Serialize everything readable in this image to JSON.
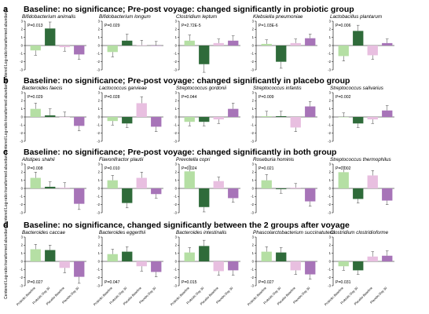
{
  "colors": {
    "Probiotic Baseline": "#b5dfa4",
    "Probiotic Day 30": "#2f6b3a",
    "Placebo Baseline": "#e8bfe0",
    "Placebo Day 30": "#a774b8"
  },
  "group_labels": [
    "Probiotic Baseline",
    "Probiotic Day 30",
    "Placebo Baseline",
    "Placebo Day 30"
  ],
  "chart_data": [
    {
      "panel": "a",
      "title": "Baseline: no significance; Pre-post voyage: changed significantly in probiotic group",
      "ylabel": "Centered Log-ratio transformed abundance",
      "ylim": [
        -3,
        3
      ],
      "yticks": [
        "3",
        "2",
        "1",
        "0",
        "-1",
        "-2",
        "-3"
      ],
      "charts": [
        {
          "type": "bar",
          "title": "Bifidobacterium animalis",
          "pvalue": "P=0.013",
          "values": [
            -0.6,
            2.1,
            -0.2,
            -1.1
          ],
          "errors": [
            0.6,
            0.8,
            0.5,
            0.6
          ]
        },
        {
          "type": "bar",
          "title": "Bifidobacterium longum",
          "pvalue": "P=0.029",
          "values": [
            -0.8,
            0.6,
            0.05,
            0.0
          ],
          "errors": [
            0.6,
            0.8,
            0.6,
            0.5
          ]
        },
        {
          "type": "bar",
          "title": "Clostridium leptum",
          "pvalue": "P=2.72E-5",
          "values": [
            0.6,
            -2.3,
            0.3,
            0.6
          ],
          "errors": [
            0.7,
            1.0,
            0.5,
            0.6
          ]
        },
        {
          "type": "bar",
          "title": "Klebsiella pneumoniae",
          "pvalue": "P=1.03E-6",
          "values": [
            0.2,
            -2.0,
            0.3,
            0.9
          ],
          "errors": [
            0.5,
            0.8,
            0.5,
            0.5
          ]
        },
        {
          "type": "bar",
          "title": "Lactobacillus plantarum",
          "pvalue": "P=0.006",
          "values": [
            -1.3,
            1.8,
            -1.2,
            0.3
          ],
          "errors": [
            0.6,
            0.7,
            0.5,
            0.5
          ]
        }
      ]
    },
    {
      "panel": "b",
      "title": "Baseline: no significance; Pre-post voyage: changed significantly in placebo group",
      "ylabel": "Centered Log-ratio transformed abundance",
      "ylim": [
        -3,
        3
      ],
      "yticks": [
        "3",
        "2",
        "1",
        "0",
        "-1",
        "-2",
        "-3"
      ],
      "charts": [
        {
          "type": "bar",
          "title": "Bacteroides faecis",
          "pvalue": "P=0.029",
          "values": [
            1.0,
            0.2,
            0.0,
            -1.1
          ],
          "errors": [
            0.7,
            0.8,
            0.6,
            0.6
          ]
        },
        {
          "type": "bar",
          "title": "Lactococcus garvieae",
          "pvalue": "P=0.028",
          "values": [
            -0.5,
            -0.8,
            1.7,
            -1.2
          ],
          "errors": [
            0.5,
            0.5,
            0.8,
            0.6
          ]
        },
        {
          "type": "bar",
          "title": "Streptococcus gordonii",
          "pvalue": "P=0.044",
          "values": [
            -0.6,
            -0.6,
            -0.3,
            1.0
          ],
          "errors": [
            0.5,
            0.5,
            0.5,
            0.7
          ]
        },
        {
          "type": "bar",
          "title": "Streptococcus infantis",
          "pvalue": "P=0.009",
          "values": [
            0.1,
            0.1,
            -1.3,
            1.3
          ],
          "errors": [
            0.6,
            0.6,
            0.5,
            0.6
          ]
        },
        {
          "type": "bar",
          "title": "Streptococcus salivarius",
          "pvalue": "P=0.002",
          "values": [
            0.0,
            -0.8,
            -0.3,
            0.8
          ],
          "errors": [
            0.5,
            0.5,
            0.5,
            0.6
          ]
        }
      ]
    },
    {
      "panel": "c",
      "title": "Baseline: no significance; Pre-post voyage: changed significantly in both group",
      "ylabel": "Centered Log-ratio transformed abundance",
      "ylim": [
        -3,
        3
      ],
      "yticks": [
        "3",
        "2",
        "1",
        "0",
        "-1",
        "-2",
        "-3"
      ],
      "charts": [
        {
          "type": "bar",
          "title": "Alistipes shahii",
          "pvalue": "P=0.008",
          "values": [
            1.3,
            0.2,
            0.1,
            -1.9
          ],
          "errors": [
            0.7,
            0.6,
            0.6,
            0.7
          ]
        },
        {
          "type": "bar",
          "title": "Flavonifractor plautii",
          "pvalue": "P=0.010",
          "values": [
            1.0,
            -1.8,
            1.3,
            -0.7
          ],
          "errors": [
            0.6,
            0.6,
            0.7,
            0.5
          ]
        },
        {
          "type": "bar",
          "title": "Prevotella copri",
          "pvalue": "P=0.024",
          "values": [
            2.1,
            -2.3,
            0.9,
            -1.2
          ],
          "errors": [
            0.7,
            0.6,
            0.5,
            0.5
          ]
        },
        {
          "type": "bar",
          "title": "Roseburia hominis",
          "pvalue": "P=0.021",
          "values": [
            1.0,
            -0.1,
            0.1,
            -1.6
          ],
          "errors": [
            0.7,
            0.5,
            0.5,
            0.6
          ]
        },
        {
          "type": "bar",
          "title": "Streptococcus thermophilus",
          "pvalue": "P=0.002",
          "values": [
            2.0,
            -1.3,
            1.6,
            -1.5
          ],
          "errors": [
            0.7,
            0.5,
            0.6,
            0.5
          ]
        }
      ]
    },
    {
      "panel": "d",
      "title": "Baseline: no significance, changed significantly between the 2 groups after voyage",
      "ylabel": "Centered Log-ratio transformed abundance",
      "ylim": [
        -3,
        3
      ],
      "yticks": [
        "3",
        "2",
        "1",
        "0",
        "-1",
        "-2",
        "-3"
      ],
      "charts": [
        {
          "type": "bar",
          "title": "Bacteroides caccae",
          "pvalue": "P=0.027",
          "values": [
            1.5,
            1.4,
            -0.8,
            -1.9
          ],
          "errors": [
            0.6,
            0.6,
            0.6,
            0.8
          ]
        },
        {
          "type": "bar",
          "title": "Bacteroides eggerthii",
          "pvalue": "P=0.047",
          "values": [
            0.9,
            1.2,
            -0.6,
            -1.3
          ],
          "errors": [
            0.6,
            0.6,
            0.6,
            0.6
          ]
        },
        {
          "type": "bar",
          "title": "Bacteroides intestinalis",
          "pvalue": "P=0.015",
          "values": [
            1.1,
            1.9,
            -1.2,
            -1.1
          ],
          "errors": [
            0.6,
            0.7,
            0.5,
            0.6
          ]
        },
        {
          "type": "bar",
          "title": "Phascolarctobacterium succinatutens",
          "pvalue": "P=0.027",
          "values": [
            1.2,
            1.1,
            -1.1,
            -1.6
          ],
          "errors": [
            0.6,
            0.6,
            0.5,
            0.6
          ]
        },
        {
          "type": "bar",
          "title": "Clostridium clostridioforme",
          "pvalue": "P=0.031",
          "values": [
            -0.6,
            -1.1,
            0.6,
            0.7
          ],
          "errors": [
            0.5,
            0.5,
            0.6,
            0.6
          ]
        }
      ]
    }
  ]
}
